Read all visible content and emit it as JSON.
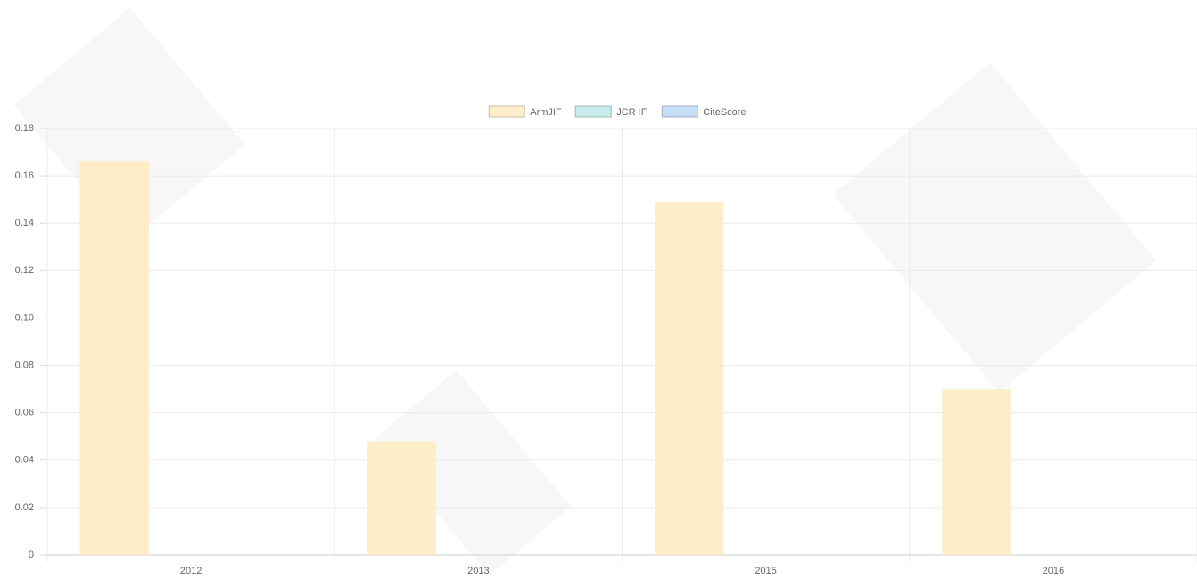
{
  "chart_data": {
    "type": "bar",
    "categories": [
      "2012",
      "2013",
      "2015",
      "2016"
    ],
    "series": [
      {
        "name": "ArmJIF",
        "color": "#fdedc8",
        "values": [
          0.166,
          0.048,
          0.149,
          0.07
        ]
      },
      {
        "name": "JCR IF",
        "color": "#c8ebeb",
        "values": [
          0,
          0,
          0,
          0
        ]
      },
      {
        "name": "CiteScore",
        "color": "#c7dff5",
        "values": [
          0,
          0,
          0,
          0
        ]
      }
    ],
    "ylim": [
      0,
      0.18
    ],
    "yticks": [
      0,
      0.02,
      0.04,
      0.06,
      0.08,
      {
        "value": 0.1,
        "label": "0.10"
      },
      0.12,
      0.14,
      0.16,
      0.18
    ],
    "grid": true,
    "legend": "top"
  }
}
